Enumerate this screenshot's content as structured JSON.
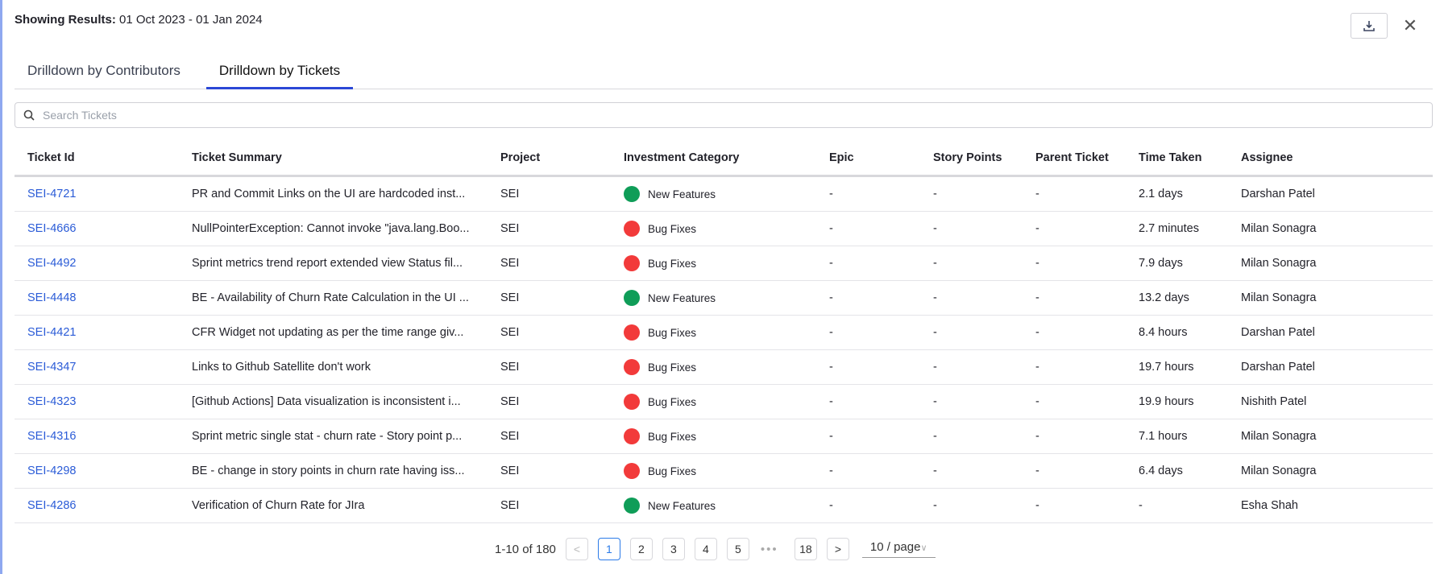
{
  "header": {
    "showing_label": "Showing Results:",
    "date_range": "01 Oct 2023 - 01 Jan 2024",
    "download_icon": "download-icon",
    "close_icon": "close-icon",
    "close_glyph": "✕"
  },
  "tabs": [
    {
      "label": "Drilldown by Contributors",
      "active": false
    },
    {
      "label": "Drilldown by Tickets",
      "active": true
    }
  ],
  "search": {
    "placeholder": "Search Tickets",
    "value": ""
  },
  "colors": {
    "accent": "#2b48d6",
    "link": "#2a5bd7",
    "new_features": "#0f9d58",
    "bug_fixes": "#f23a3a"
  },
  "table": {
    "columns": [
      "Ticket Id",
      "Ticket Summary",
      "Project",
      "Investment Category",
      "Epic",
      "Story Points",
      "Parent Ticket",
      "Time Taken",
      "Assignee"
    ],
    "rows": [
      [
        "SEI-4721",
        "PR and Commit Links on the UI are hardcoded inst...",
        "SEI",
        "New Features",
        "-",
        "-",
        "-",
        "2.1 days",
        "Darshan Patel"
      ],
      [
        "SEI-4666",
        "NullPointerException: Cannot invoke \"java.lang.Boo...",
        "SEI",
        "Bug Fixes",
        "-",
        "-",
        "-",
        "2.7 minutes",
        "Milan Sonagra"
      ],
      [
        "SEI-4492",
        "Sprint metrics trend report extended view Status fil...",
        "SEI",
        "Bug Fixes",
        "-",
        "-",
        "-",
        "7.9 days",
        "Milan Sonagra"
      ],
      [
        "SEI-4448",
        "BE - Availability of Churn Rate Calculation in the UI ...",
        "SEI",
        "New Features",
        "-",
        "-",
        "-",
        "13.2 days",
        "Milan Sonagra"
      ],
      [
        "SEI-4421",
        "CFR Widget not updating as per the time range giv...",
        "SEI",
        "Bug Fixes",
        "-",
        "-",
        "-",
        "8.4 hours",
        "Darshan Patel"
      ],
      [
        "SEI-4347",
        "Links to Github Satellite don't work",
        "SEI",
        "Bug Fixes",
        "-",
        "-",
        "-",
        "19.7 hours",
        "Darshan Patel"
      ],
      [
        "SEI-4323",
        "[Github Actions] Data visualization is inconsistent i...",
        "SEI",
        "Bug Fixes",
        "-",
        "-",
        "-",
        "19.9 hours",
        "Nishith Patel"
      ],
      [
        "SEI-4316",
        "Sprint metric single stat - churn rate - Story point p...",
        "SEI",
        "Bug Fixes",
        "-",
        "-",
        "-",
        "7.1 hours",
        "Milan Sonagra"
      ],
      [
        "SEI-4298",
        "BE - change in story points in churn rate having iss...",
        "SEI",
        "Bug Fixes",
        "-",
        "-",
        "-",
        "6.4 days",
        "Milan Sonagra"
      ],
      [
        "SEI-4286",
        "Verification of Churn Rate for JIra",
        "SEI",
        "New Features",
        "-",
        "-",
        "-",
        "-",
        "Esha Shah"
      ]
    ]
  },
  "pagination": {
    "summary": "1-10 of 180",
    "pages": [
      "1",
      "2",
      "3",
      "4",
      "5"
    ],
    "ellipsis": "•••",
    "last_page": "18",
    "current": "1",
    "prev": "<",
    "next": ">",
    "page_size": "10 / page",
    "page_size_caret": "∨"
  }
}
